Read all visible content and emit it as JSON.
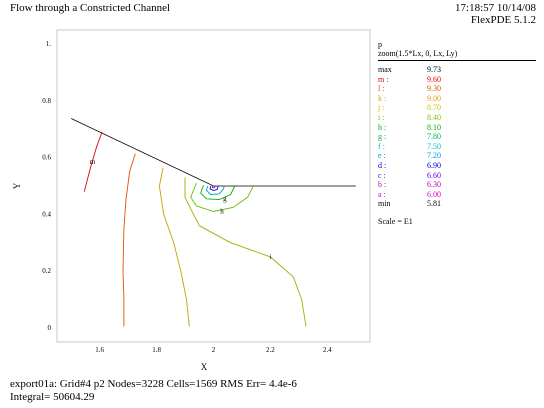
{
  "header": {
    "title": "Flow through a Constricted Channel",
    "time_date": "17:18:57 10/14/08",
    "version": "FlexPDE 5.1.2"
  },
  "legend": {
    "variable": "p",
    "zoom": "zoom(1.5*Lx, 0, Lx, Ly)",
    "rows": [
      {
        "key": "max",
        "value": "9.73",
        "color": "#000000"
      },
      {
        "key": "m :",
        "value": "9.60",
        "color": "#e00000"
      },
      {
        "key": "l :",
        "value": "9.30",
        "color": "#e05000"
      },
      {
        "key": "k :",
        "value": "9.00",
        "color": "#e0a000"
      },
      {
        "key": "j :",
        "value": "8.70",
        "color": "#c8c800"
      },
      {
        "key": "i :",
        "value": "8.40",
        "color": "#80c000"
      },
      {
        "key": "h :",
        "value": "8.10",
        "color": "#00b000"
      },
      {
        "key": "g :",
        "value": "7.80",
        "color": "#00b060"
      },
      {
        "key": "f :",
        "value": "7.50",
        "color": "#00c0c0"
      },
      {
        "key": "e :",
        "value": "7.20",
        "color": "#0090e0"
      },
      {
        "key": "d :",
        "value": "6.90",
        "color": "#0000e0"
      },
      {
        "key": "c :",
        "value": "6.60",
        "color": "#6000e0"
      },
      {
        "key": "b :",
        "value": "6.30",
        "color": "#b000c0"
      },
      {
        "key": "a :",
        "value": "6.00",
        "color": "#e000e0"
      },
      {
        "key": "min",
        "value": "5.81",
        "color": "#000000"
      }
    ],
    "scale": "Scale = E1"
  },
  "footer": {
    "line1": "export01a:  Grid#4  p2  Nodes=3228 Cells=1569 RMS Err= 4.4e-6",
    "line2": "Integral=   50604.29"
  },
  "chart_data": {
    "type": "line",
    "title": "",
    "xlabel": "X",
    "ylabel": "Y",
    "xlim": [
      1.45,
      2.55
    ],
    "ylim": [
      -0.05,
      1.05
    ],
    "xticks": [
      1.6,
      1.8,
      2.0,
      2.2,
      2.4
    ],
    "xtick_labels": [
      "1.6",
      "1.8",
      "2",
      "2.2",
      "2.4"
    ],
    "yticks": [
      0.0,
      0.2,
      0.4,
      0.6,
      0.8,
      1.0
    ],
    "ytick_labels": [
      "0",
      "0.2",
      "0.4",
      "0.6",
      "0.8",
      "1."
    ],
    "boundary": [
      [
        1.5,
        0.738
      ],
      [
        2.0,
        0.5
      ],
      [
        2.5,
        0.5
      ]
    ],
    "series": [
      {
        "label": "m",
        "color": "#e00000",
        "points": [
          [
            1.608,
            0.69
          ],
          [
            1.59,
            0.64
          ],
          [
            1.572,
            0.58
          ],
          [
            1.556,
            0.52
          ],
          [
            1.546,
            0.48
          ]
        ],
        "label_at": [
          1.575,
          0.585
        ]
      },
      {
        "label": "l",
        "color": "#e05000",
        "points": [
          [
            1.725,
            0.614
          ],
          [
            1.705,
            0.55
          ],
          [
            1.692,
            0.45
          ],
          [
            1.685,
            0.35
          ],
          [
            1.682,
            0.2
          ],
          [
            1.685,
            0.1
          ],
          [
            1.685,
            0.005
          ]
        ],
        "label_at": null
      },
      {
        "label": "j",
        "color": "#c8a000",
        "points": [
          [
            1.823,
            0.565
          ],
          [
            1.81,
            0.5
          ],
          [
            1.825,
            0.4
          ],
          [
            1.86,
            0.3
          ],
          [
            1.885,
            0.2
          ],
          [
            1.905,
            0.1
          ],
          [
            1.915,
            0.005
          ]
        ],
        "label_at": null
      },
      {
        "label": "i",
        "color": "#a0b000",
        "points": [
          [
            1.9,
            0.53
          ],
          [
            1.9,
            0.46
          ],
          [
            1.95,
            0.36
          ],
          [
            2.06,
            0.3
          ],
          [
            2.2,
            0.25
          ],
          [
            2.28,
            0.18
          ],
          [
            2.31,
            0.1
          ],
          [
            2.325,
            0.005
          ]
        ],
        "label_at": [
          2.2,
          0.25
        ]
      },
      {
        "label": "h",
        "color": "#60c000",
        "points": [
          [
            1.94,
            0.51
          ],
          [
            1.92,
            0.46
          ],
          [
            1.94,
            0.43
          ],
          [
            2.0,
            0.41
          ],
          [
            2.07,
            0.425
          ],
          [
            2.12,
            0.46
          ],
          [
            2.14,
            0.5
          ]
        ],
        "label_at": [
          2.03,
          0.41
        ]
      },
      {
        "label": "g",
        "color": "#00b000",
        "points": [
          [
            1.965,
            0.503
          ],
          [
            1.955,
            0.475
          ],
          [
            1.975,
            0.455
          ],
          [
            2.02,
            0.452
          ],
          [
            2.06,
            0.47
          ],
          [
            2.075,
            0.5
          ]
        ],
        "label_at": [
          2.04,
          0.455
        ]
      },
      {
        "label": "e",
        "color": "#00a0c0",
        "points": [
          [
            1.98,
            0.5
          ],
          [
            1.975,
            0.485
          ],
          [
            1.99,
            0.47
          ],
          [
            2.02,
            0.472
          ],
          [
            2.035,
            0.49
          ],
          [
            2.038,
            0.5
          ]
        ],
        "label_at": null
      },
      {
        "label": "c",
        "color": "#0000e0",
        "points": [
          [
            1.99,
            0.5
          ],
          [
            1.988,
            0.49
          ],
          [
            2.0,
            0.484
          ],
          [
            2.013,
            0.488
          ],
          [
            2.016,
            0.5
          ]
        ],
        "label_at": null
      },
      {
        "label": "a",
        "color": "#b000c0",
        "points": [
          [
            1.996,
            0.5
          ],
          [
            1.997,
            0.494
          ],
          [
            2.004,
            0.494
          ],
          [
            2.006,
            0.5
          ]
        ],
        "label_at": null
      }
    ]
  }
}
